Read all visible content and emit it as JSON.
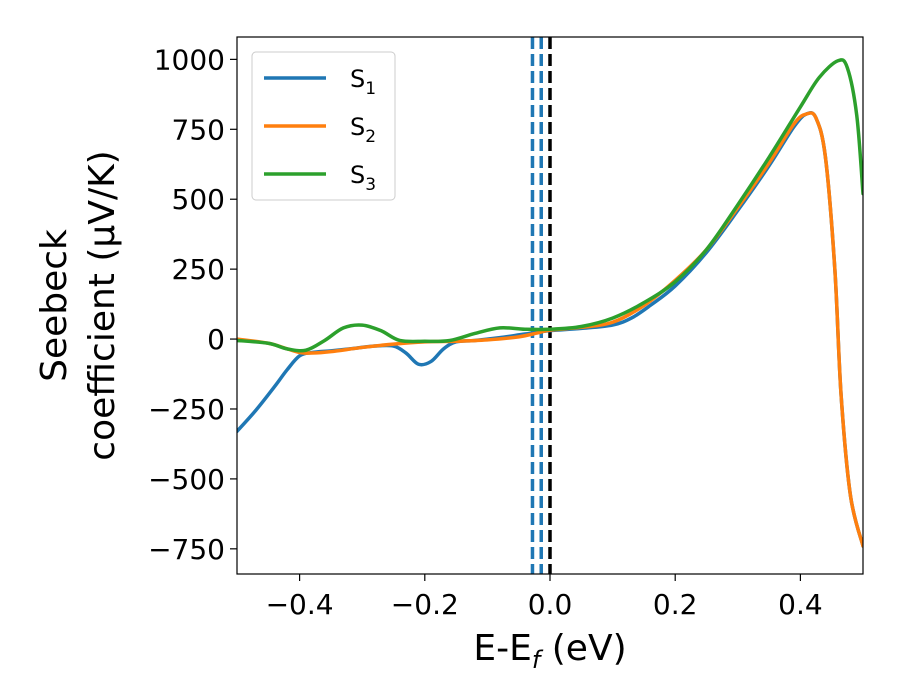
{
  "chart_data": {
    "type": "line",
    "xlabel": "E-E",
    "xlabel_sub": "f",
    "xlabel_unit": " (eV)",
    "ylabel_line1": "Seebeck",
    "ylabel_line2": "coefficient  (μV/K)",
    "xlim": [
      -0.5,
      0.5
    ],
    "ylim": [
      -840,
      1080
    ],
    "xticks": [
      -0.4,
      -0.2,
      0.0,
      0.2,
      0.4
    ],
    "xtick_labels": [
      "−0.4",
      "−0.2",
      "0.0",
      "0.2",
      "0.4"
    ],
    "yticks": [
      -750,
      -500,
      -250,
      0,
      250,
      500,
      750,
      1000
    ],
    "ytick_labels": [
      "−750",
      "−500",
      "−250",
      "0",
      "250",
      "500",
      "750",
      "1000"
    ],
    "grid": false,
    "legend_position": "top-left",
    "vlines": [
      {
        "x": -0.028,
        "color": "#1f77b4",
        "style": "dashed"
      },
      {
        "x": -0.014,
        "color": "#1f77b4",
        "style": "dashed"
      },
      {
        "x": 0.0,
        "color": "#000000",
        "style": "dashed"
      }
    ],
    "series": [
      {
        "name": "S",
        "sub": "1",
        "color": "#1f77b4",
        "points": [
          [
            -0.5,
            -330
          ],
          [
            -0.47,
            -255
          ],
          [
            -0.44,
            -170
          ],
          [
            -0.42,
            -110
          ],
          [
            -0.4,
            -60
          ],
          [
            -0.38,
            -48
          ],
          [
            -0.35,
            -42
          ],
          [
            -0.32,
            -35
          ],
          [
            -0.28,
            -25
          ],
          [
            -0.25,
            -25
          ],
          [
            -0.23,
            -50
          ],
          [
            -0.21,
            -90
          ],
          [
            -0.19,
            -80
          ],
          [
            -0.17,
            -35
          ],
          [
            -0.15,
            -10
          ],
          [
            -0.12,
            -5
          ],
          [
            -0.08,
            5
          ],
          [
            -0.04,
            18
          ],
          [
            0.0,
            30
          ],
          [
            0.05,
            38
          ],
          [
            0.1,
            50
          ],
          [
            0.13,
            75
          ],
          [
            0.16,
            120
          ],
          [
            0.2,
            190
          ],
          [
            0.25,
            310
          ],
          [
            0.3,
            460
          ],
          [
            0.35,
            620
          ],
          [
            0.39,
            760
          ],
          [
            0.41,
            805
          ],
          [
            0.425,
            790
          ],
          [
            0.44,
            650
          ],
          [
            0.455,
            250
          ],
          [
            0.465,
            -200
          ],
          [
            0.48,
            -560
          ],
          [
            0.5,
            -740
          ]
        ]
      },
      {
        "name": "S",
        "sub": "2",
        "color": "#ff7f0e",
        "points": [
          [
            -0.5,
            0
          ],
          [
            -0.45,
            -15
          ],
          [
            -0.42,
            -35
          ],
          [
            -0.4,
            -48
          ],
          [
            -0.38,
            -50
          ],
          [
            -0.35,
            -45
          ],
          [
            -0.3,
            -30
          ],
          [
            -0.25,
            -18
          ],
          [
            -0.2,
            -10
          ],
          [
            -0.15,
            -8
          ],
          [
            -0.1,
            -3
          ],
          [
            -0.05,
            8
          ],
          [
            -0.02,
            22
          ],
          [
            0.0,
            32
          ],
          [
            0.05,
            42
          ],
          [
            0.1,
            60
          ],
          [
            0.15,
            120
          ],
          [
            0.2,
            210
          ],
          [
            0.25,
            320
          ],
          [
            0.3,
            470
          ],
          [
            0.35,
            630
          ],
          [
            0.39,
            770
          ],
          [
            0.41,
            805
          ],
          [
            0.425,
            790
          ],
          [
            0.44,
            650
          ],
          [
            0.455,
            250
          ],
          [
            0.465,
            -200
          ],
          [
            0.48,
            -560
          ],
          [
            0.5,
            -740
          ]
        ]
      },
      {
        "name": "S",
        "sub": "3",
        "color": "#2ca02c",
        "points": [
          [
            -0.5,
            -5
          ],
          [
            -0.45,
            -15
          ],
          [
            -0.42,
            -35
          ],
          [
            -0.39,
            -40
          ],
          [
            -0.36,
            -5
          ],
          [
            -0.33,
            40
          ],
          [
            -0.3,
            50
          ],
          [
            -0.27,
            30
          ],
          [
            -0.24,
            -5
          ],
          [
            -0.2,
            -8
          ],
          [
            -0.16,
            -5
          ],
          [
            -0.12,
            20
          ],
          [
            -0.08,
            40
          ],
          [
            -0.04,
            35
          ],
          [
            0.0,
            35
          ],
          [
            0.05,
            45
          ],
          [
            0.1,
            75
          ],
          [
            0.15,
            130
          ],
          [
            0.2,
            205
          ],
          [
            0.25,
            320
          ],
          [
            0.3,
            480
          ],
          [
            0.35,
            650
          ],
          [
            0.4,
            830
          ],
          [
            0.43,
            935
          ],
          [
            0.46,
            995
          ],
          [
            0.475,
            970
          ],
          [
            0.49,
            800
          ],
          [
            0.5,
            520
          ]
        ]
      }
    ]
  }
}
